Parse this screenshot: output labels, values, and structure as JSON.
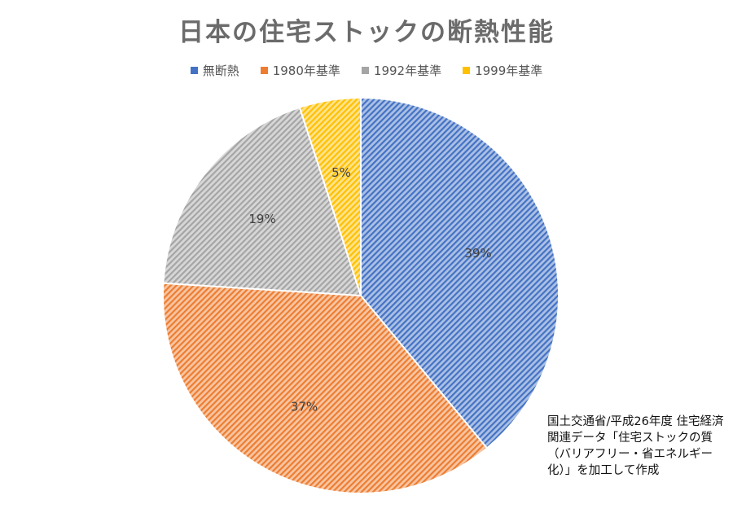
{
  "chart_data": {
    "type": "pie",
    "title": "日本の住宅ストックの断熱性能",
    "categories": [
      "無断熱",
      "1980年基準",
      "1992年基準",
      "1999年基準"
    ],
    "values": [
      39,
      37,
      19,
      5
    ],
    "labels": [
      "39%",
      "37%",
      "19%",
      "5%"
    ],
    "colors": [
      "#4472C4",
      "#ED7D31",
      "#A5A5A5",
      "#FFC000"
    ],
    "legend_position": "top",
    "pattern": "diagonal-hatch"
  },
  "source_note": "国土交通省/平成26年度 住宅経済関連データ「住宅ストックの質（バリアフリー・省エネルギー化）」を加工して作成"
}
